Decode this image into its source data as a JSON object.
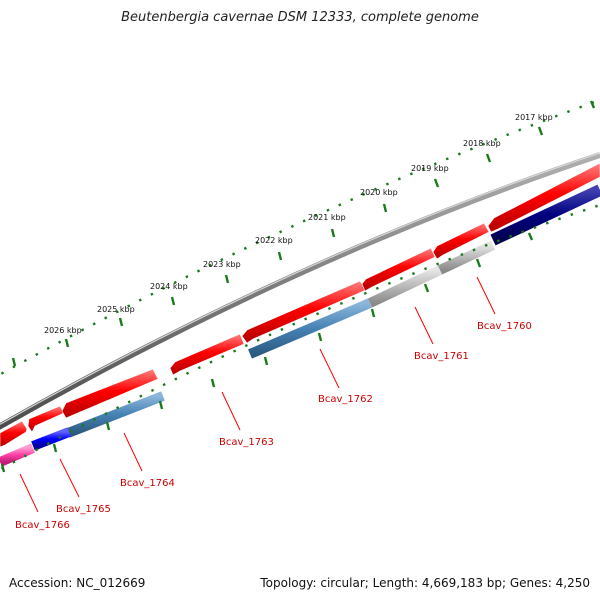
{
  "title": "Beutenbergia cavernae DSM 12333, complete genome",
  "footer": {
    "accession": "Accession: NC_012669",
    "summary": "Topology: circular; Length: 4,669,183 bp; Genes: 4,250"
  },
  "colors": {
    "backbone": "#7a7a7a",
    "forward_cds": "#ff0000",
    "tick": "#1a7a1a",
    "label": "#cc0000",
    "cog_steelblue": "#4682b4",
    "cog_gray": "#b8b8b8",
    "cog_navy": "#000080",
    "cog_blue": "#0000ff",
    "cog_pink": "#ff3fa4"
  },
  "kbp_labels": [
    "2017 kbp",
    "2018 kbp",
    "2019 kbp",
    "2020 kbp",
    "2021 kbp",
    "2022 kbp",
    "2023 kbp",
    "2024 kbp",
    "2025 kbp",
    "2026 kbp"
  ],
  "gene_labels": [
    "Bcav_1760",
    "Bcav_1761",
    "Bcav_1762",
    "Bcav_1763",
    "Bcav_1764",
    "Bcav_1765",
    "Bcav_1766"
  ]
}
